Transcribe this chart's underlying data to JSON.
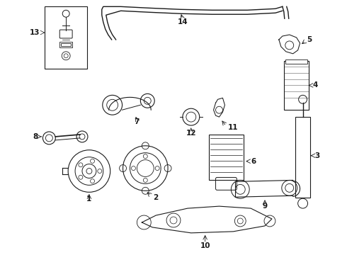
{
  "bg_color": "#ffffff",
  "line_color": "#1a1a1a",
  "label_color": "#000000",
  "fig_width": 4.9,
  "fig_height": 3.6,
  "dpi": 100,
  "lw": 0.75,
  "lw_thin": 0.5,
  "lw_thick": 1.0
}
